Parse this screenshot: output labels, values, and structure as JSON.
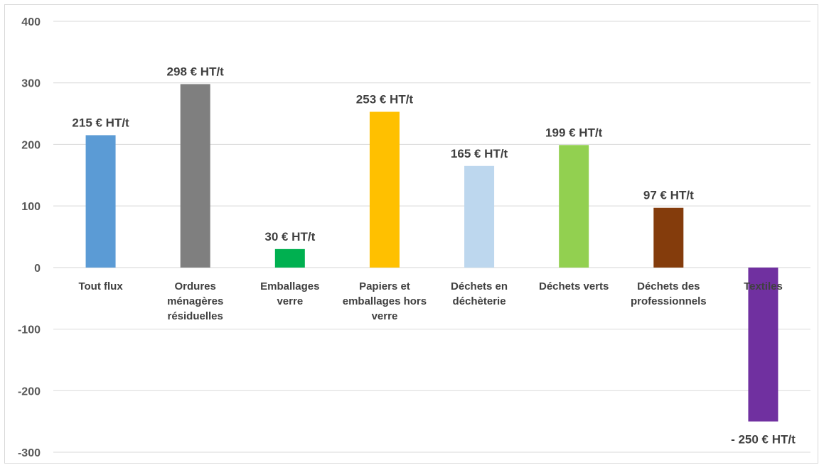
{
  "chart_data": {
    "type": "bar",
    "title": "",
    "xlabel": "",
    "ylabel": "",
    "ylim": [
      -300,
      400
    ],
    "yticks": [
      400,
      300,
      200,
      100,
      0,
      -100,
      -200,
      -300
    ],
    "grid": true,
    "legend": "none",
    "categories": [
      [
        "Tout flux"
      ],
      [
        "Ordures",
        "ménagères",
        "résiduelles"
      ],
      [
        "Emballages",
        "verre"
      ],
      [
        "Papiers et",
        "emballages hors",
        "verre"
      ],
      [
        "Déchets en",
        "déchèterie"
      ],
      [
        "Déchets verts"
      ],
      [
        "Déchets des",
        "professionnels"
      ],
      [
        "Textiles"
      ]
    ],
    "values": [
      215,
      298,
      30,
      253,
      165,
      199,
      97,
      -250
    ],
    "data_labels": [
      "215 € HT/t",
      "298 € HT/t",
      "30 € HT/t",
      "253 € HT/t",
      "165 € HT/t",
      "199 € HT/t",
      "97 € HT/t",
      "- 250 € HT/t"
    ],
    "colors": [
      "#5b9bd5",
      "#7f7f7f",
      "#00b050",
      "#ffc000",
      "#bdd7ee",
      "#92d050",
      "#843c0c",
      "#7030a0"
    ]
  }
}
